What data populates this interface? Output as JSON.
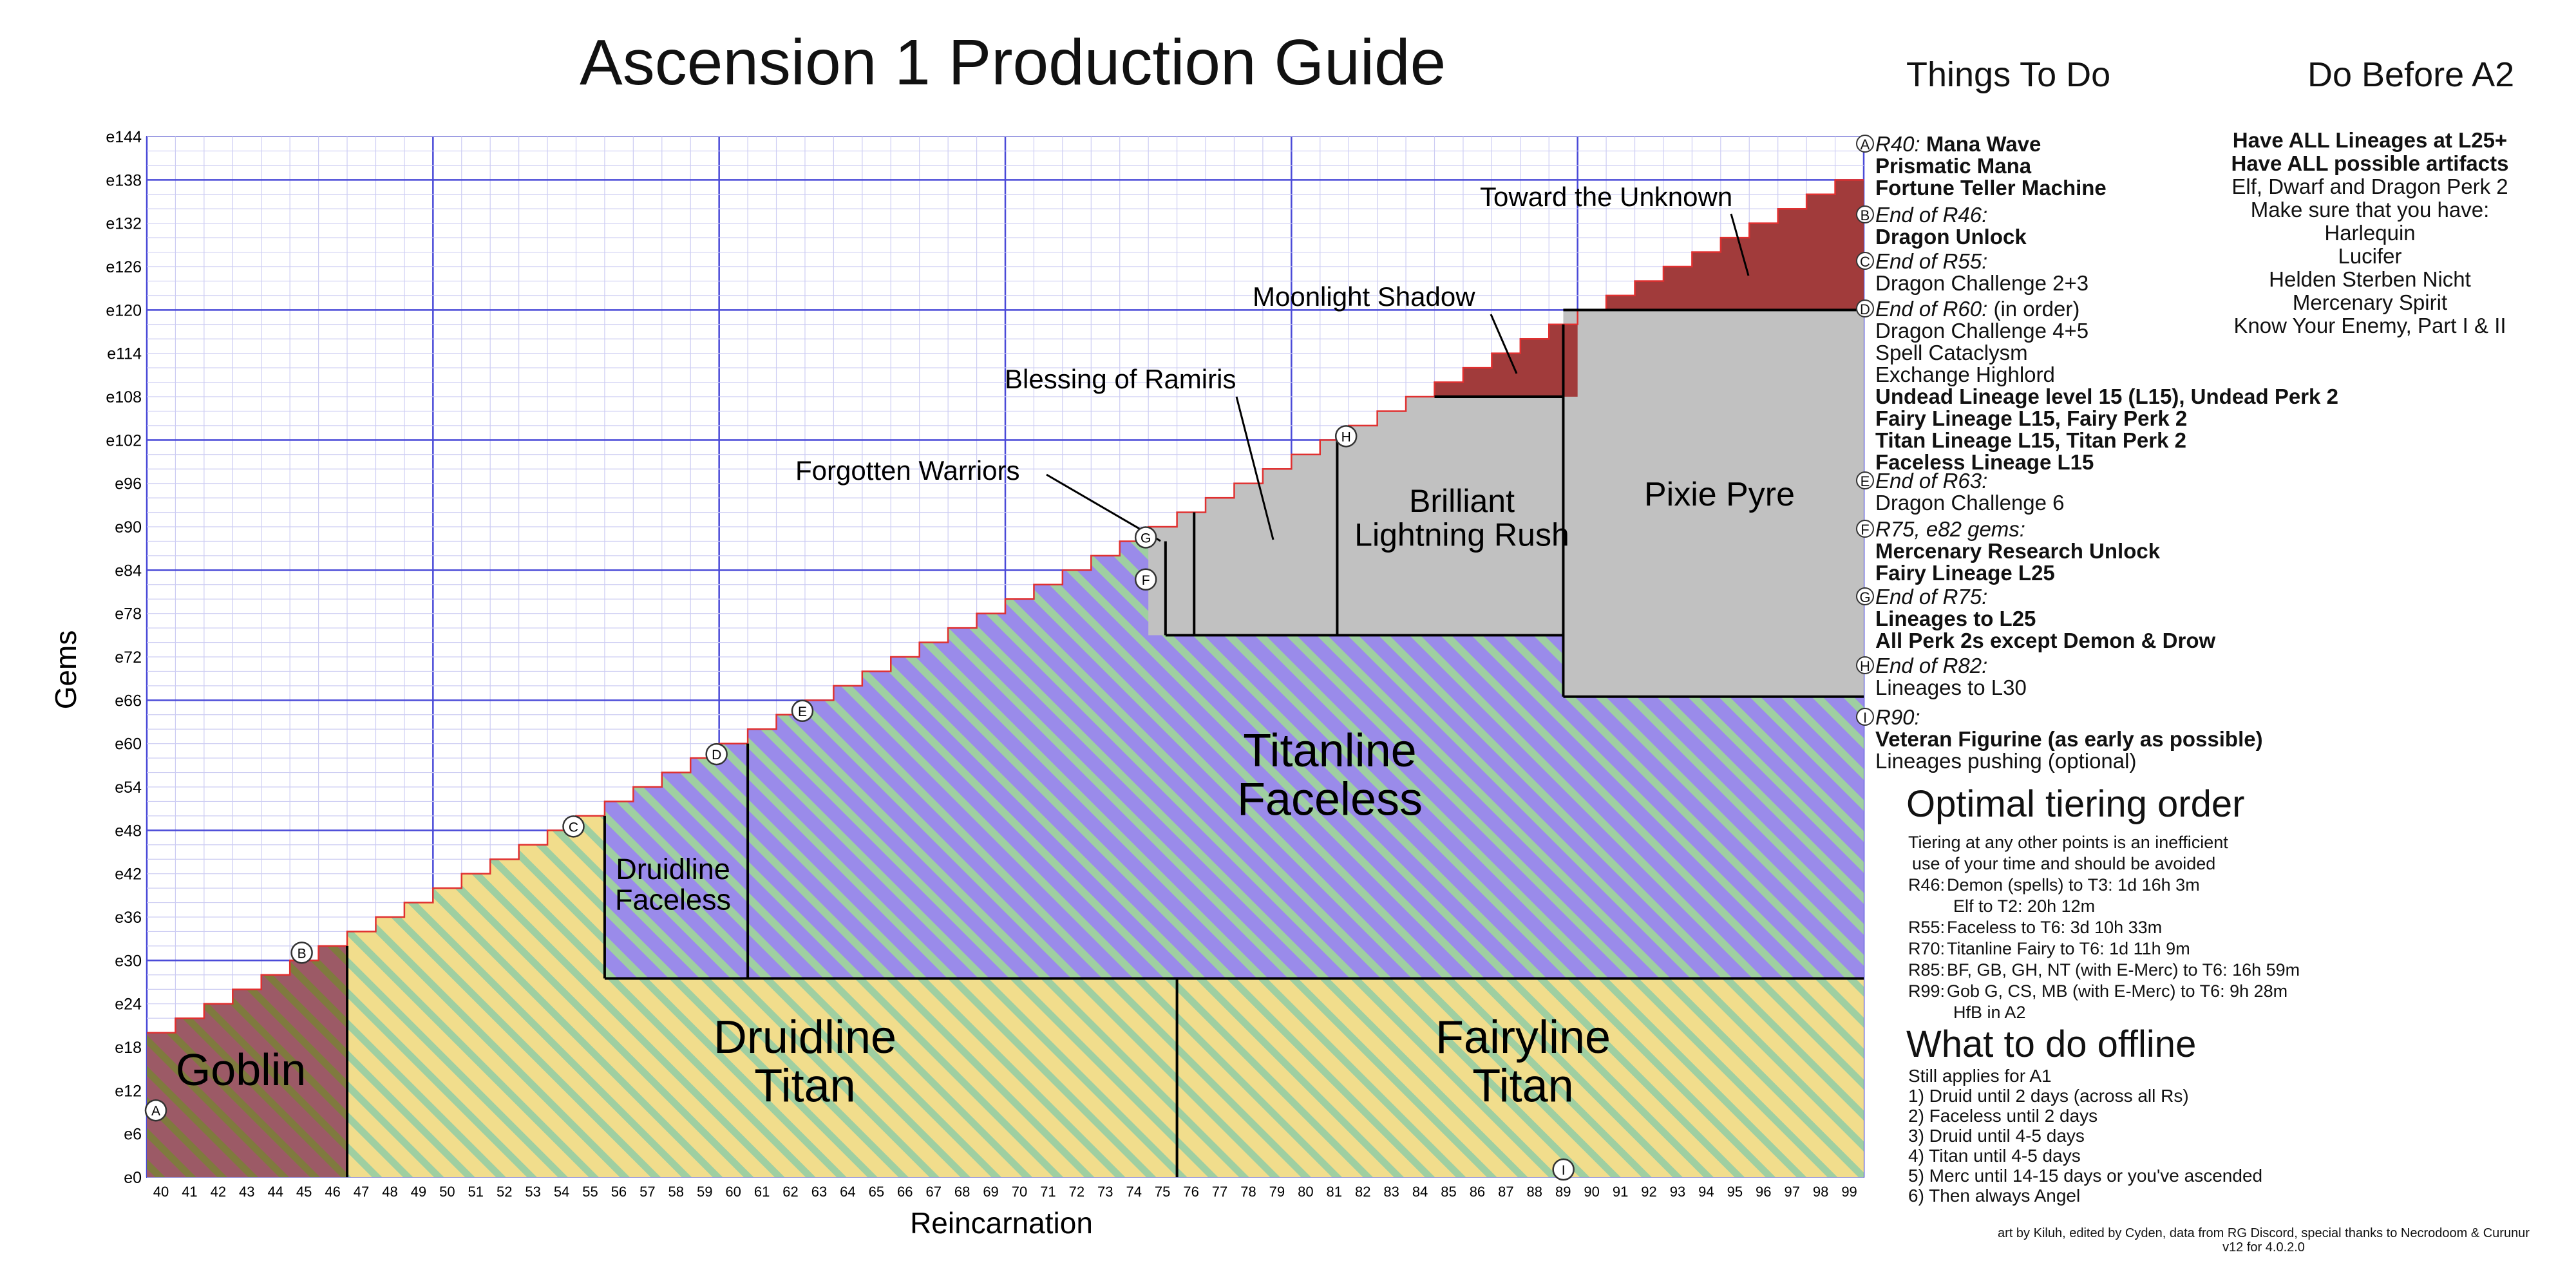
{
  "title": "Ascension 1 Production Guide",
  "things_heading": "Things To Do",
  "a2_heading": "Do Before A2",
  "todo": [
    {
      "marker": "A",
      "lines": [
        [
          {
            "t": "R40: ",
            "s": "it"
          },
          {
            "t": "Mana Wave",
            "s": "bd"
          }
        ],
        [
          {
            "t": "Prismatic Mana",
            "s": "bd"
          }
        ],
        [
          {
            "t": "Fortune Teller Machine",
            "s": "bd"
          }
        ]
      ]
    },
    {
      "marker": "B",
      "lines": [
        [
          {
            "t": "End of R46:",
            "s": "it"
          }
        ],
        [
          {
            "t": "Dragon Unlock",
            "s": "bd"
          }
        ]
      ]
    },
    {
      "marker": "C",
      "lines": [
        [
          {
            "t": "End of R55:",
            "s": "it"
          }
        ],
        [
          {
            "t": "Dragon Challenge 2+3",
            "s": ""
          }
        ]
      ]
    },
    {
      "marker": "D",
      "lines": [
        [
          {
            "t": "End of R60: ",
            "s": "it"
          },
          {
            "t": "(in order)",
            "s": ""
          }
        ],
        [
          {
            "t": "Dragon Challenge 4+5",
            "s": ""
          }
        ],
        [
          {
            "t": "Spell Cataclysm",
            "s": ""
          }
        ],
        [
          {
            "t": "Exchange Highlord",
            "s": ""
          }
        ],
        [
          {
            "t": "Undead Lineage level 15 (L15), Undead Perk 2",
            "s": "bd"
          }
        ],
        [
          {
            "t": "Fairy Lineage L15, Fairy Perk 2",
            "s": "bd"
          }
        ],
        [
          {
            "t": "Titan Lineage L15, Titan Perk 2",
            "s": "bd"
          }
        ],
        [
          {
            "t": "Faceless Lineage L15",
            "s": "bd"
          }
        ]
      ]
    },
    {
      "marker": "E",
      "lines": [
        [
          {
            "t": "End of R63:",
            "s": "it"
          }
        ],
        [
          {
            "t": "Dragon Challenge 6",
            "s": ""
          }
        ]
      ]
    },
    {
      "marker": "F",
      "lines": [
        [
          {
            "t": "R75, e82 gems:",
            "s": "it"
          }
        ],
        [
          {
            "t": "Mercenary Research Unlock",
            "s": "bd"
          }
        ],
        [
          {
            "t": "Fairy Lineage L25",
            "s": "bd"
          }
        ]
      ]
    },
    {
      "marker": "G",
      "lines": [
        [
          {
            "t": "End of R75:",
            "s": "it"
          }
        ],
        [
          {
            "t": "Lineages to L25",
            "s": "bd"
          }
        ],
        [
          {
            "t": "All Perk 2s except Demon & Drow",
            "s": "bd"
          }
        ]
      ]
    },
    {
      "marker": "H",
      "lines": [
        [
          {
            "t": "End of R82:",
            "s": "it"
          }
        ],
        [
          {
            "t": "Lineages to L30",
            "s": ""
          }
        ]
      ]
    },
    {
      "marker": "I",
      "lines": [
        [
          {
            "t": "R90:",
            "s": "it"
          }
        ],
        [
          {
            "t": "Veteran Figurine (as early as possible)",
            "s": "bd"
          }
        ],
        [
          {
            "t": "Lineages pushing (optional)",
            "s": ""
          }
        ]
      ]
    }
  ],
  "a2": [
    {
      "t": "Have ALL Lineages at L25+",
      "s": "bd"
    },
    {
      "t": "Have ALL possible artifacts",
      "s": "bd"
    },
    {
      "t": "Elf, Dwarf and Dragon Perk 2",
      "s": ""
    },
    {
      "t": "Make sure that you have:",
      "s": ""
    },
    {
      "t": "Harlequin",
      "s": ""
    },
    {
      "t": "Lucifer",
      "s": ""
    },
    {
      "t": "Helden Sterben Nicht",
      "s": ""
    },
    {
      "t": "Mercenary Spirit",
      "s": ""
    },
    {
      "t": "Know Your Enemy, Part I & II",
      "s": ""
    }
  ],
  "tiering": {
    "heading": "Optimal tiering order",
    "intro": [
      "Tiering at any other points is an inefficient",
      "use of your time and should be avoided"
    ],
    "rows": [
      {
        "r": "R46:",
        "lines": [
          "Demon (spells) to T3: 1d 16h 3m",
          "Elf to T2: 20h 12m"
        ]
      },
      {
        "r": "R55:",
        "lines": [
          "Faceless to T6: 3d 10h 33m"
        ]
      },
      {
        "r": "R70:",
        "lines": [
          "Titanline Fairy to T6: 1d 11h 9m"
        ]
      },
      {
        "r": "R85:",
        "lines": [
          "BF, GB, GH, NT (with E-Merc) to T6: 16h 59m"
        ]
      },
      {
        "r": "R99:",
        "lines": [
          "Gob G, CS, MB (with E-Merc) to T6: 9h 28m",
          "HfB in A2"
        ]
      }
    ]
  },
  "offline": {
    "heading": "What to do offline",
    "lines": [
      "Still applies for A1",
      "1) Druid until 2 days (across all Rs)",
      "2) Faceless until 2 days",
      "3) Druid until 4-5 days",
      "4) Titan until 4-5 days",
      "5) Merc until 14-15 days or you've ascended",
      "6) Then always Angel"
    ]
  },
  "credit": [
    "art by Kiluh, edited by Cyden, data from RG Discord, special thanks to Necrodoom & Curunur",
    "v12 for 4.0.2.0"
  ],
  "chart_data": {
    "type": "area",
    "xlabel": "Reincarnation",
    "ylabel": "Gems",
    "xlim": [
      40,
      99
    ],
    "ylim": [
      0,
      144
    ],
    "y_ticks": [
      "e0",
      "e6",
      "e12",
      "e18",
      "e24",
      "e30",
      "e36",
      "e42",
      "e48",
      "e54",
      "e60",
      "e66",
      "e72",
      "e78",
      "e84",
      "e90",
      "e96",
      "e102",
      "e108",
      "e114",
      "e120",
      "e126",
      "e132",
      "e138",
      "e144"
    ],
    "x_ticks": [
      40,
      41,
      42,
      43,
      44,
      45,
      46,
      47,
      48,
      49,
      50,
      51,
      52,
      53,
      54,
      55,
      56,
      57,
      58,
      59,
      60,
      61,
      62,
      63,
      64,
      65,
      66,
      67,
      68,
      69,
      70,
      71,
      72,
      73,
      74,
      75,
      76,
      77,
      78,
      79,
      80,
      81,
      82,
      83,
      84,
      85,
      86,
      87,
      88,
      89,
      90,
      91,
      92,
      93,
      94,
      95,
      96,
      97,
      98,
      99
    ],
    "gem_curve": [
      20,
      22,
      24,
      26,
      28,
      30,
      32,
      34,
      36,
      38,
      40,
      42,
      44,
      46,
      48,
      50,
      52,
      54,
      56,
      58,
      60,
      62,
      64,
      66,
      68,
      70,
      72,
      74,
      76,
      78,
      80,
      82,
      84,
      86,
      88,
      90,
      92,
      94,
      96,
      98,
      100,
      102,
      104,
      106,
      108,
      110,
      112,
      114,
      116,
      118,
      120,
      122,
      124,
      126,
      128,
      130,
      132,
      134,
      136,
      138
    ],
    "regions": [
      {
        "name": "Goblin",
        "label": [
          "Goblin"
        ],
        "from": 40,
        "to": 46,
        "style": "goblin"
      },
      {
        "name": "Druidline Titan",
        "label": [
          "Druidline",
          "Titan"
        ],
        "from": 46,
        "to": 75,
        "style": "druid"
      },
      {
        "name": "Druidline Faceless",
        "label": [
          "Druidline",
          "Faceless"
        ],
        "from": 55,
        "to": 60,
        "style": "faceless"
      },
      {
        "name": "Titanline Faceless",
        "label": [
          "Titanline",
          "Faceless"
        ],
        "from": 60,
        "to": 99,
        "style": "faceless"
      },
      {
        "name": "Fairyline Titan",
        "label": [
          "Fairyline",
          "Titan"
        ],
        "from": 75,
        "to": 99,
        "style": "druid"
      },
      {
        "name": "Brilliant Lightning Rush",
        "label": [
          "Brilliant",
          "Lightning Rush"
        ],
        "from": 81,
        "to": 89,
        "style": "gray"
      },
      {
        "name": "Pixie Pyre",
        "label": [
          "Pixie Pyre"
        ],
        "from": 89,
        "to": 99,
        "style": "gray"
      }
    ],
    "annotations": [
      {
        "text": "Forgotten Warriors"
      },
      {
        "text": "Blessing of Ramiris"
      },
      {
        "text": "Moonlight Shadow"
      },
      {
        "text": "Toward the Unknown"
      }
    ],
    "milestones": [
      {
        "marker": "A",
        "x": 40,
        "y": 8
      },
      {
        "marker": "B",
        "x": 46,
        "y": 30
      },
      {
        "marker": "C",
        "x": 55,
        "y": 48
      },
      {
        "marker": "D",
        "x": 60,
        "y": 58
      },
      {
        "marker": "E",
        "x": 63,
        "y": 64
      },
      {
        "marker": "F",
        "x": 75,
        "y": 82
      },
      {
        "marker": "G",
        "x": 75,
        "y": 88
      },
      {
        "marker": "H",
        "x": 82,
        "y": 102
      },
      {
        "marker": "I",
        "x": 90,
        "y": 0
      }
    ]
  }
}
